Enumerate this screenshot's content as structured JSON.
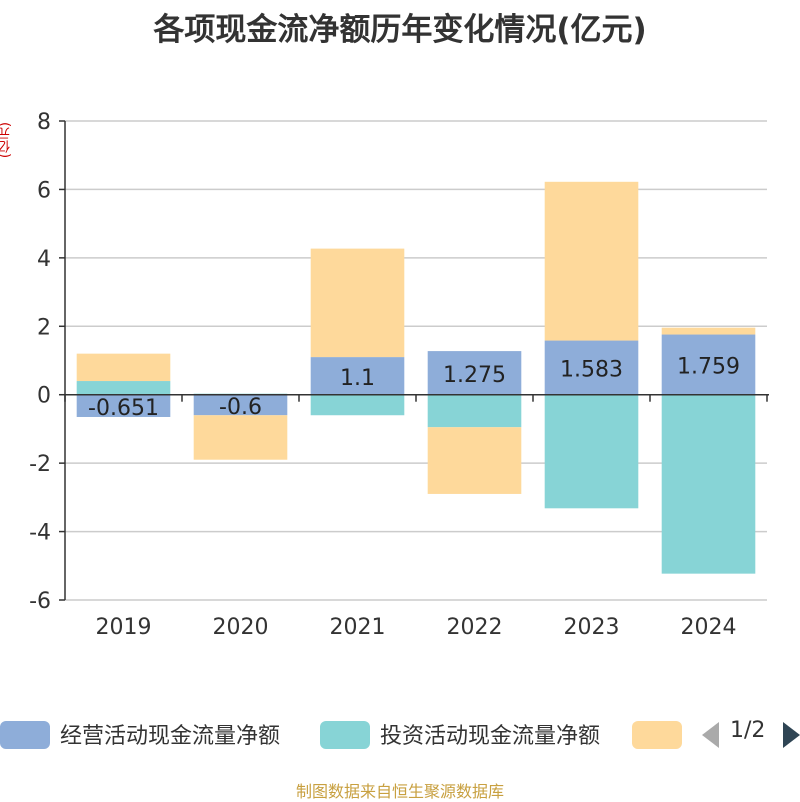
{
  "title": "各项现金流净额历年变化情况(亿元)",
  "ylabel": "(亿元)",
  "source": "制图数据来自恒生聚源数据库",
  "pager": {
    "text": "1/2"
  },
  "colors": {
    "operating": "#8eadd9",
    "investing": "#87d4d6",
    "financing": "#fed99b"
  },
  "chart_data": {
    "type": "bar",
    "stacked": true,
    "categories": [
      "2019",
      "2020",
      "2021",
      "2022",
      "2023",
      "2024"
    ],
    "ylim": [
      -6,
      8
    ],
    "yticks": [
      -6,
      -4,
      -2,
      0,
      2,
      4,
      6,
      8
    ],
    "series": [
      {
        "name": "经营活动现金流量净额",
        "key": "operating",
        "values": [
          -0.651,
          -0.6,
          1.1,
          1.275,
          1.583,
          1.759
        ],
        "labels": [
          "-0.651",
          "-0.6",
          "1.1",
          "1.275",
          "1.583",
          "1.759"
        ]
      },
      {
        "name": "投资活动现金流量净额",
        "key": "investing",
        "values": [
          0.4,
          0.03,
          -0.6,
          -0.95,
          -3.32,
          -5.23
        ]
      },
      {
        "name": "",
        "key": "financing",
        "values": [
          0.8,
          -1.3,
          3.17,
          -1.95,
          4.64,
          0.2
        ]
      }
    ]
  }
}
